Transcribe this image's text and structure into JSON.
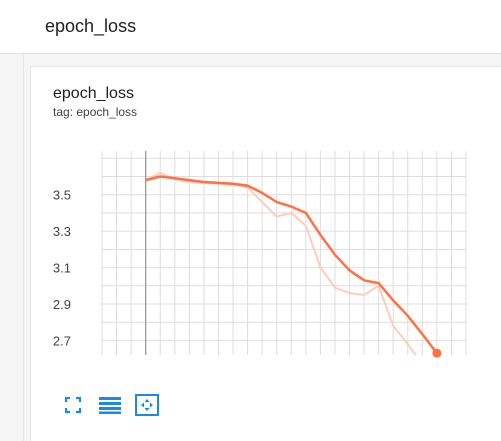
{
  "header": {
    "title": "epoch_loss"
  },
  "card": {
    "title": "epoch_loss",
    "subtitle": "tag: epoch_loss"
  },
  "toolbar": {
    "icons": [
      "fullscreen-icon",
      "toggle-log-scale-icon",
      "fit-domain-icon"
    ]
  },
  "colors": {
    "series": "#ff7043",
    "series_raw": "#ffccbc",
    "grid": "#dddddd",
    "axis": "#999999",
    "icon": "#1e88e5"
  },
  "chart_data": {
    "type": "line",
    "title": "epoch_loss",
    "subtitle": "tag: epoch_loss",
    "xlabel": "",
    "ylabel": "",
    "xlim": [
      -3,
      22
    ],
    "ylim": [
      2.62,
      3.74
    ],
    "x_ticks": [
      0,
      2,
      4,
      6,
      8,
      10,
      12,
      14,
      16,
      18,
      20
    ],
    "y_ticks": [
      2.7,
      2.9,
      3.1,
      3.3,
      3.5
    ],
    "grid": true,
    "series": [
      {
        "role": "smoothed",
        "x": [
          0,
          1,
          2,
          3,
          4,
          5,
          6,
          7,
          8,
          9,
          10,
          11,
          12,
          13,
          14,
          15,
          16,
          17,
          18,
          19,
          20
        ],
        "y": [
          3.58,
          3.6,
          3.59,
          3.58,
          3.57,
          3.565,
          3.56,
          3.55,
          3.51,
          3.46,
          3.435,
          3.4,
          3.28,
          3.17,
          3.085,
          3.03,
          3.015,
          2.92,
          2.835,
          2.735,
          2.63
        ]
      },
      {
        "role": "raw",
        "x": [
          0,
          1,
          2,
          3,
          4,
          5,
          6,
          7,
          8,
          9,
          10,
          11,
          12,
          13,
          14,
          15,
          16,
          17,
          18,
          19,
          20
        ],
        "y": [
          3.58,
          3.62,
          3.585,
          3.57,
          3.565,
          3.56,
          3.555,
          3.54,
          3.46,
          3.38,
          3.4,
          3.33,
          3.1,
          2.99,
          2.96,
          2.95,
          3.0,
          2.78,
          2.68,
          2.57,
          2.52
        ]
      }
    ]
  }
}
